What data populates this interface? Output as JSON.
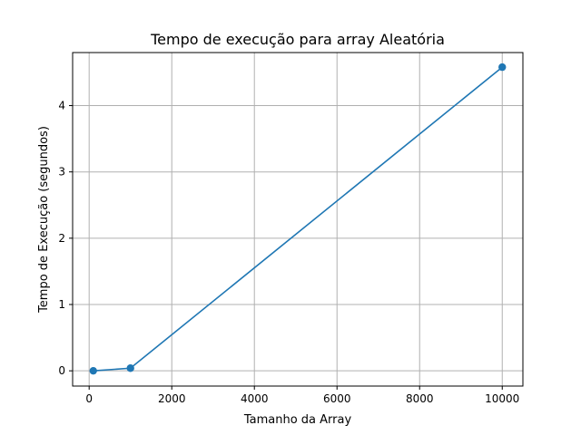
{
  "chart_data": {
    "type": "line",
    "title": "Tempo de execução para array Aleatória",
    "xlabel": "Tamanho da Array",
    "ylabel": "Tempo de Execução (segundos)",
    "xlim": [
      -400,
      10500
    ],
    "ylim": [
      -0.23,
      4.8
    ],
    "xticks": [
      0,
      2000,
      4000,
      6000,
      8000,
      10000
    ],
    "yticks": [
      0,
      1,
      2,
      3,
      4
    ],
    "grid": true,
    "series": [
      {
        "color": "#1f77b4",
        "marker": "circle",
        "points": [
          {
            "x": 100,
            "y": 0.0
          },
          {
            "x": 1000,
            "y": 0.04
          },
          {
            "x": 10000,
            "y": 4.58
          }
        ]
      }
    ]
  }
}
